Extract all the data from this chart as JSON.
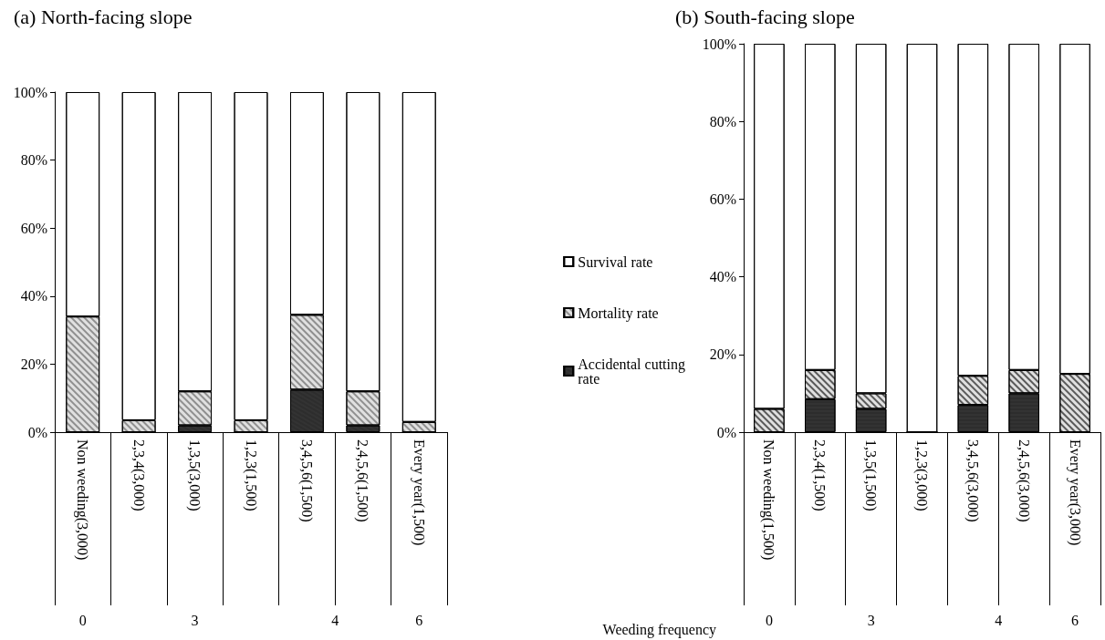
{
  "chart_data": [
    {
      "type": "bar",
      "title": "(a) North-facing slope",
      "stacked": true,
      "legend": "right",
      "grid": false,
      "categories": [
        "Non weeding(3,000)",
        "2,3,4(3,000)",
        "1,3,5(3,000)",
        "1,2,3(1,500)",
        "3,4,5,6(1,500)",
        "2,4,5,6(1,500)",
        "Every year(1,500)"
      ],
      "series": [
        {
          "name": "Accidental cutting rate",
          "color": "#333333",
          "values": [
            0,
            0,
            2,
            0,
            12.5,
            2,
            0
          ]
        },
        {
          "name": "Mortality rate",
          "color": "#e0e0e0",
          "values": [
            34,
            3.5,
            10,
            3.5,
            22,
            10,
            3
          ]
        },
        {
          "name": "Survival rate",
          "color": "#ffffff",
          "values": [
            66,
            96.5,
            88,
            96.5,
            65.5,
            88,
            97
          ]
        }
      ],
      "ylim": [
        0,
        100
      ],
      "yticks": [
        {
          "value": 0,
          "label": "0%"
        },
        {
          "value": 20,
          "label": "20%"
        },
        {
          "value": 40,
          "label": "40%"
        },
        {
          "value": 60,
          "label": "60%"
        },
        {
          "value": 80,
          "label": "80%"
        },
        {
          "value": 100,
          "label": "100%"
        }
      ],
      "annotations": [
        "0",
        "3",
        "4",
        "6"
      ]
    },
    {
      "type": "bar",
      "title": "(b) South-facing slope",
      "stacked": true,
      "legend": false,
      "grid": false,
      "xlabel": "Weeding frequency",
      "categories": [
        "Non weeding(1,500)",
        "2,3,4(1,500)",
        "1,3,5(1,500)",
        "1,2,3(3,000)",
        "3,4,5,6(3,000)",
        "2,4,5,6(3,000)",
        "Every year(3,000)"
      ],
      "series": [
        {
          "color": "#333333",
          "values": [
            0,
            8.5,
            6,
            0,
            7,
            10,
            0
          ]
        },
        {
          "color": "#e0e0e0",
          "values": [
            6,
            7.5,
            4,
            0,
            7.5,
            6,
            15
          ]
        },
        {
          "color": "#ffffff",
          "values": [
            94,
            84,
            90,
            100,
            85.5,
            84,
            85
          ]
        }
      ],
      "ylim": [
        0,
        100
      ],
      "yticks": [
        {
          "value": 0,
          "label": "0%"
        },
        {
          "value": 20,
          "label": "20%"
        },
        {
          "value": 40,
          "label": "40%"
        },
        {
          "value": 60,
          "label": "60%"
        },
        {
          "value": 80,
          "label": "80%"
        },
        {
          "value": 100,
          "label": "100%"
        }
      ],
      "annotations": [
        "0",
        "3",
        "4",
        "6"
      ]
    }
  ]
}
